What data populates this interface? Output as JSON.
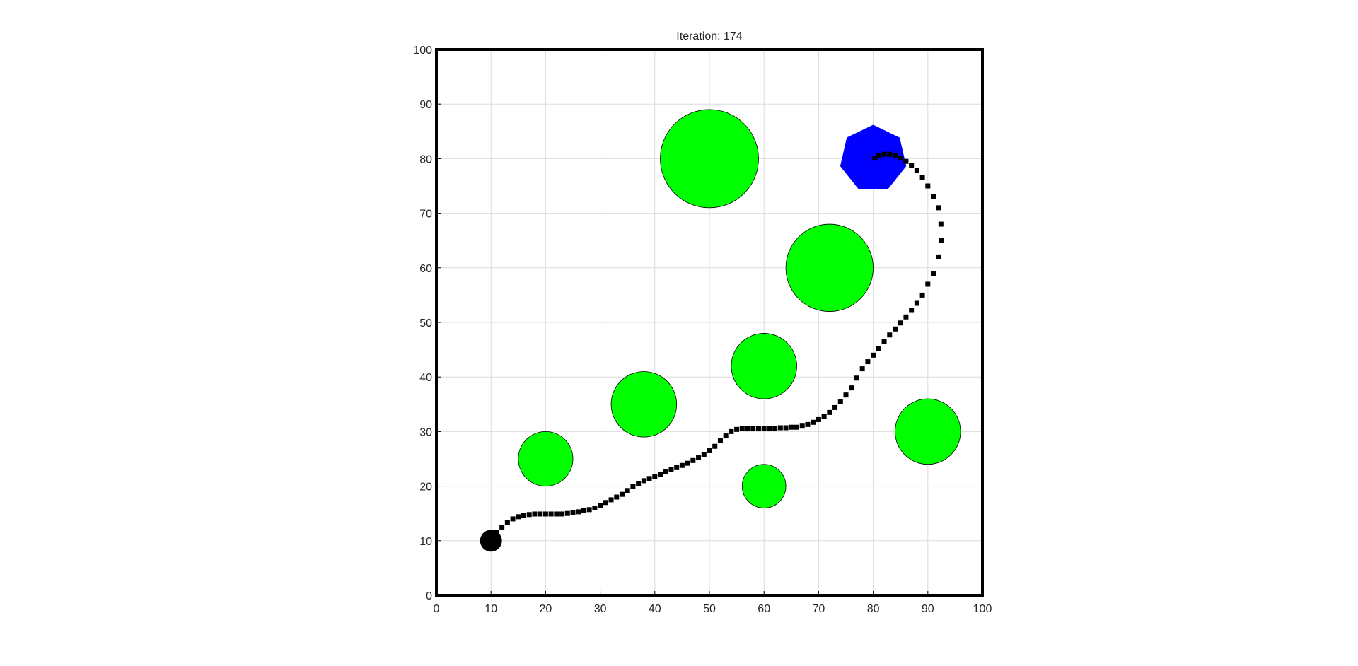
{
  "chart_data": {
    "type": "scatter",
    "title": "Iteration: 174",
    "xlim": [
      0,
      100
    ],
    "ylim": [
      0,
      100
    ],
    "xticks": [
      0,
      10,
      20,
      30,
      40,
      50,
      60,
      70,
      80,
      90,
      100
    ],
    "yticks": [
      0,
      10,
      20,
      30,
      40,
      50,
      60,
      70,
      80,
      90,
      100
    ],
    "grid": true,
    "obstacles": {
      "color": "#00ff00",
      "x": [
        50,
        72,
        60,
        38,
        20,
        60,
        90
      ],
      "y": [
        80,
        60,
        42,
        35,
        25,
        20,
        30
      ],
      "r": [
        9,
        8,
        6,
        6,
        5,
        4,
        6
      ]
    },
    "goal": {
      "color": "#0000ff",
      "x": 80,
      "y": 80,
      "r": 6.2,
      "sides": 7
    },
    "start": {
      "color": "#000000",
      "x": 10,
      "y": 10,
      "r": 2
    },
    "path": {
      "color": "#000000",
      "x": [
        11,
        12,
        13,
        14,
        15,
        16,
        17,
        18,
        19,
        20,
        21,
        22,
        23,
        24,
        25,
        26,
        27,
        28,
        29,
        30,
        31,
        32,
        33,
        34,
        35,
        36,
        37,
        38,
        39,
        40,
        41,
        42,
        43,
        44,
        45,
        46,
        47,
        48,
        49,
        50,
        51,
        52,
        53,
        54,
        55,
        56,
        57,
        58,
        59,
        60,
        61,
        62,
        63,
        64,
        65,
        66,
        67,
        68,
        69,
        70,
        71,
        72,
        73,
        74,
        75,
        76,
        77,
        78,
        79,
        80,
        81,
        82,
        83,
        84,
        85,
        86,
        87,
        88,
        89,
        90,
        91,
        92,
        92.5,
        92.4,
        92,
        91,
        90,
        89,
        88,
        87,
        86,
        85,
        84,
        83,
        82,
        81,
        80.3
      ],
      "y": [
        11.5,
        12.5,
        13.3,
        14,
        14.4,
        14.6,
        14.8,
        14.9,
        14.9,
        14.9,
        14.9,
        14.9,
        14.9,
        15,
        15.1,
        15.3,
        15.5,
        15.7,
        16,
        16.5,
        17,
        17.5,
        18,
        18.5,
        19.2,
        20,
        20.5,
        21,
        21.4,
        21.8,
        22.2,
        22.6,
        23,
        23.4,
        23.8,
        24.2,
        24.7,
        25.2,
        25.8,
        26.5,
        27.3,
        28.3,
        29.2,
        30,
        30.4,
        30.6,
        30.6,
        30.6,
        30.6,
        30.6,
        30.6,
        30.6,
        30.7,
        30.7,
        30.8,
        30.8,
        31,
        31.3,
        31.7,
        32.2,
        32.8,
        33.5,
        34.4,
        35.5,
        36.7,
        38,
        39.8,
        41.5,
        42.8,
        44,
        45.2,
        46.5,
        47.7,
        48.8,
        49.9,
        51,
        52.2,
        53.5,
        55,
        57,
        59,
        62,
        65,
        68,
        71,
        73,
        75,
        76.5,
        77.8,
        78.7,
        79.5,
        80.1,
        80.6,
        80.8,
        80.8,
        80.6,
        80.1
      ]
    }
  }
}
